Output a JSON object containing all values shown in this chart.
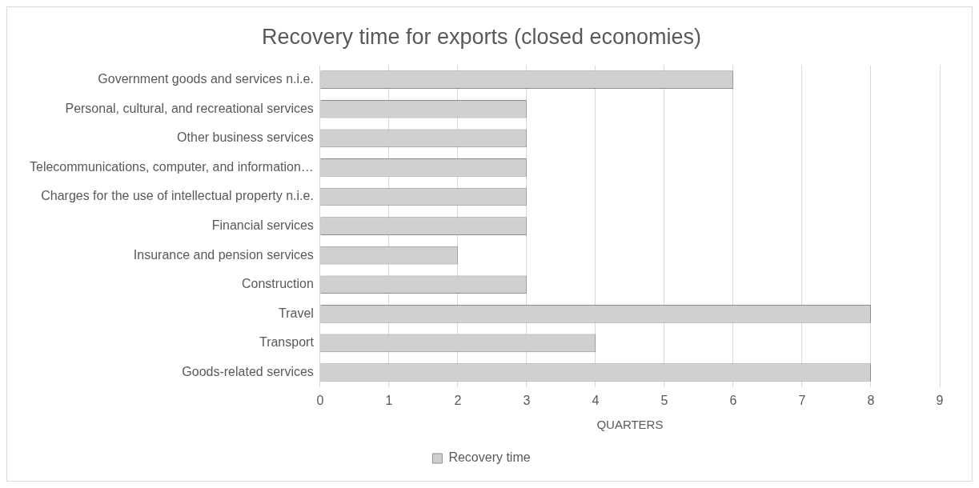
{
  "chart_data": {
    "type": "bar",
    "orientation": "horizontal",
    "title": "Recovery time for exports (closed economies)",
    "xlabel": "QUARTERS",
    "categories": [
      "Government goods and services n.i.e.",
      "Personal, cultural, and recreational services",
      "Other business services",
      "Telecommunications, computer, and information…",
      "Charges for the use of intellectual property n.i.e.",
      "Financial services",
      "Insurance and pension services",
      "Construction",
      "Travel",
      "Transport",
      "Goods-related services"
    ],
    "series": [
      {
        "name": "Recovery time",
        "color": "#d0d0d0",
        "values": [
          6,
          3,
          3,
          3,
          3,
          3,
          2,
          3,
          8,
          4,
          8
        ]
      }
    ],
    "xlim": [
      0,
      9
    ],
    "xticks": [
      0,
      1,
      2,
      3,
      4,
      5,
      6,
      7,
      8,
      9
    ],
    "grid": "x",
    "legend": "bottom"
  }
}
